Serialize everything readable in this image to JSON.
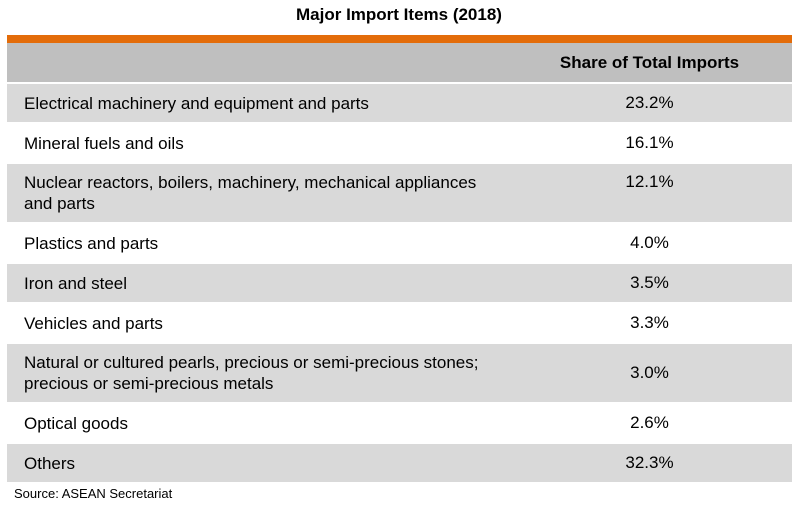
{
  "title": "Major Import Items (2018)",
  "accent_color": "#e36c0a",
  "table": {
    "header": {
      "item": "",
      "share": "Share of Total Imports"
    },
    "rows": [
      {
        "item": "Electrical machinery and equipment and parts",
        "share": "23.2%"
      },
      {
        "item": "Mineral fuels and oils",
        "share": "16.1%"
      },
      {
        "item": "Nuclear reactors, boilers, machinery, mechanical appliances and parts",
        "share": "12.1%"
      },
      {
        "item": "Plastics and parts",
        "share": "4.0%"
      },
      {
        "item": "Iron and steel",
        "share": "3.5%"
      },
      {
        "item": "Vehicles and parts",
        "share": "3.3%"
      },
      {
        "item": "Natural or cultured pearls, precious or semi-precious stones; precious or semi-precious metals",
        "share": "3.0%"
      },
      {
        "item": "Optical goods",
        "share": "2.6%"
      },
      {
        "item": "Others",
        "share": "32.3%"
      }
    ]
  },
  "source": "Source: ASEAN Secretariat"
}
